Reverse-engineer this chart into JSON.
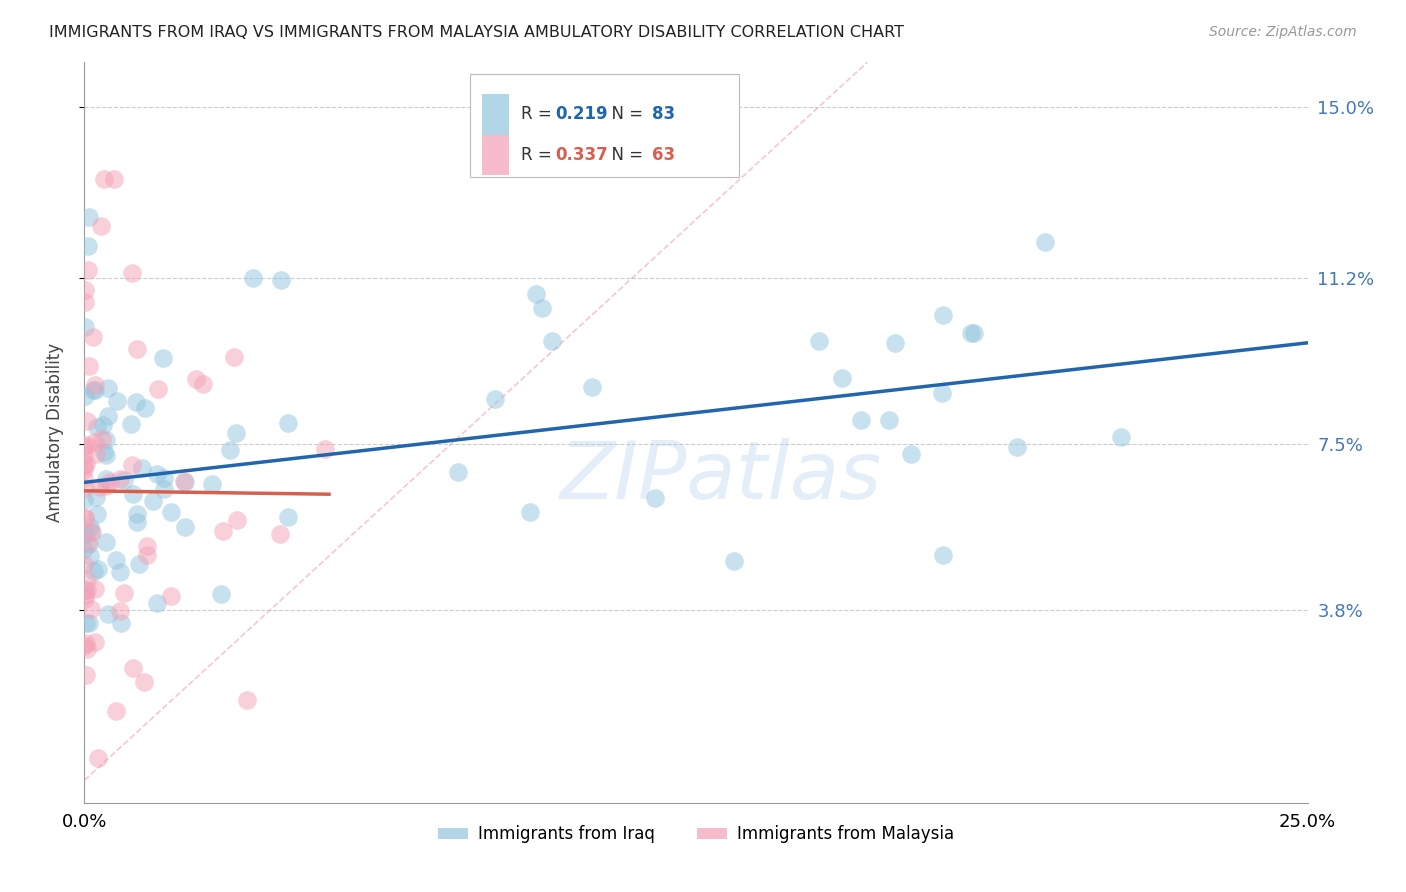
{
  "title": "IMMIGRANTS FROM IRAQ VS IMMIGRANTS FROM MALAYSIA AMBULATORY DISABILITY CORRELATION CHART",
  "source": "Source: ZipAtlas.com",
  "ylabel": "Ambulatory Disability",
  "xlim": [
    0.0,
    0.25
  ],
  "ylim": [
    -0.005,
    0.16
  ],
  "yticks": [
    0.038,
    0.075,
    0.112,
    0.15
  ],
  "ytick_labels": [
    "3.8%",
    "7.5%",
    "11.2%",
    "15.0%"
  ],
  "xtick_vals": [
    0.0,
    0.05,
    0.1,
    0.15,
    0.2,
    0.25
  ],
  "xtick_labels": [
    "0.0%",
    "",
    "",
    "",
    "",
    "25.0%"
  ],
  "legend_iraq_r": "0.219",
  "legend_iraq_n": "83",
  "legend_malaysia_r": "0.337",
  "legend_malaysia_n": "63",
  "iraq_color": "#92c5de",
  "malaysia_color": "#f4a0b5",
  "iraq_line_color": "#2166ac",
  "malaysia_line_color": "#d6604d",
  "diagonal_color": "#f4a0b5",
  "watermark": "ZIPatlas",
  "seed": 12345
}
